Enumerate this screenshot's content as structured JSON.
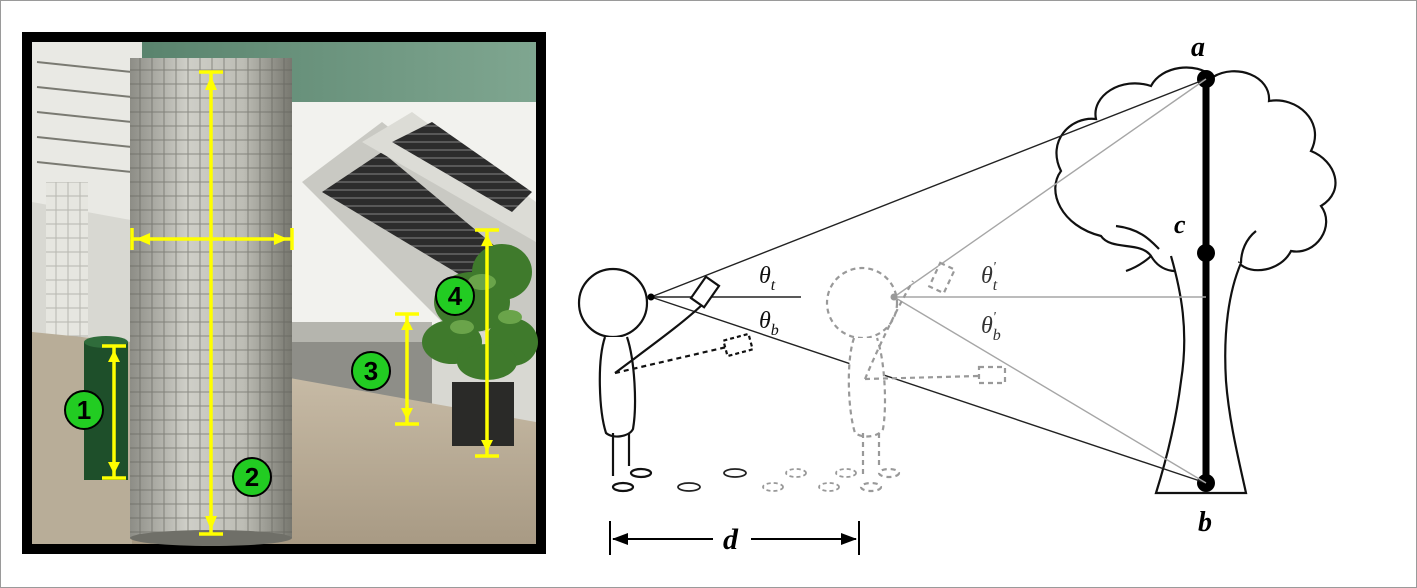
{
  "photo": {
    "markers": [
      "1",
      "2",
      "3",
      "4"
    ],
    "colors": {
      "marker_fill": "#22cc22",
      "measure_line": "#ffff00"
    }
  },
  "diagram": {
    "point_labels": {
      "a": "a",
      "b": "b",
      "c": "c"
    },
    "angles": {
      "theta_t": {
        "base": "θ",
        "sub": "t"
      },
      "theta_b": {
        "base": "θ",
        "sub": "b"
      },
      "theta_t_prime": {
        "base": "θ",
        "sub": "t",
        "prime": "'"
      },
      "theta_b_prime": {
        "base": "θ",
        "sub": "b",
        "prime": "'"
      }
    },
    "distance_label": "d"
  }
}
